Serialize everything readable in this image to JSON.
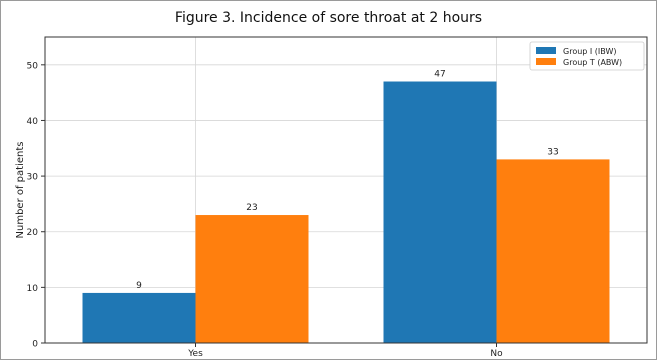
{
  "chart_data": {
    "type": "bar",
    "title": "Figure 3. Incidence of sore throat at 2 hours",
    "xlabel": "",
    "ylabel": "Number of patients",
    "categories": [
      "Yes",
      "No"
    ],
    "series": [
      {
        "name": "Group I (IBW)",
        "values": [
          9,
          47
        ],
        "color": "#1f77b4"
      },
      {
        "name": "Group T (ABW)",
        "values": [
          23,
          33
        ],
        "color": "#ff7f0e"
      }
    ],
    "ylim": [
      0,
      55
    ],
    "yticks": [
      0,
      10,
      20,
      30,
      40,
      50
    ],
    "grid": true,
    "legend_position": "top-right",
    "data_labels": true
  }
}
